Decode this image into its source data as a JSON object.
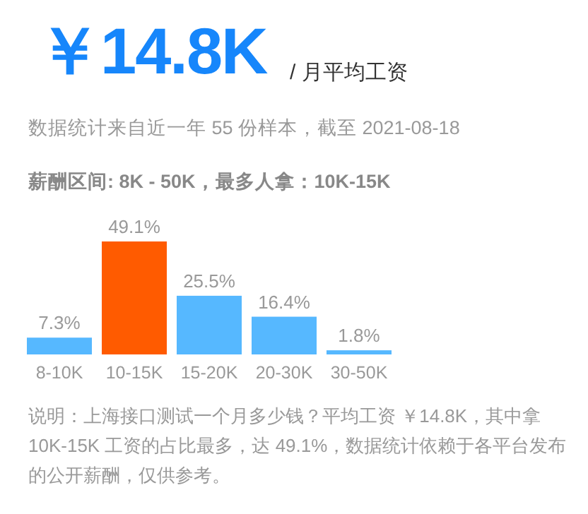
{
  "chart_data": {
    "type": "bar",
    "title": "￥14.8K",
    "subtitle": "/ 月平均工资",
    "annotations": [
      "数据统计来自近一年 55 份样本，截至 2021-08-18",
      "薪酬区间: 8K - 50K，最多人拿：10K-15K",
      "说明：上海接口测试一个月多少钱？平均工资 ￥14.8K，其中拿 10K-15K 工资的占比最多，达 49.1%，数据统计依赖于各平台发布的公开薪酬，仅供参考。"
    ],
    "categories": [
      "8-10K",
      "10-15K",
      "15-20K",
      "20-30K",
      "30-50K"
    ],
    "values": [
      7.3,
      49.1,
      25.5,
      16.4,
      1.8
    ],
    "colors": [
      "#56b8ff",
      "#ff5b00",
      "#56b8ff",
      "#56b8ff",
      "#56b8ff"
    ],
    "value_labels": [
      "7.3%",
      "49.1%",
      "25.5%",
      "16.4%",
      "1.8%"
    ]
  }
}
